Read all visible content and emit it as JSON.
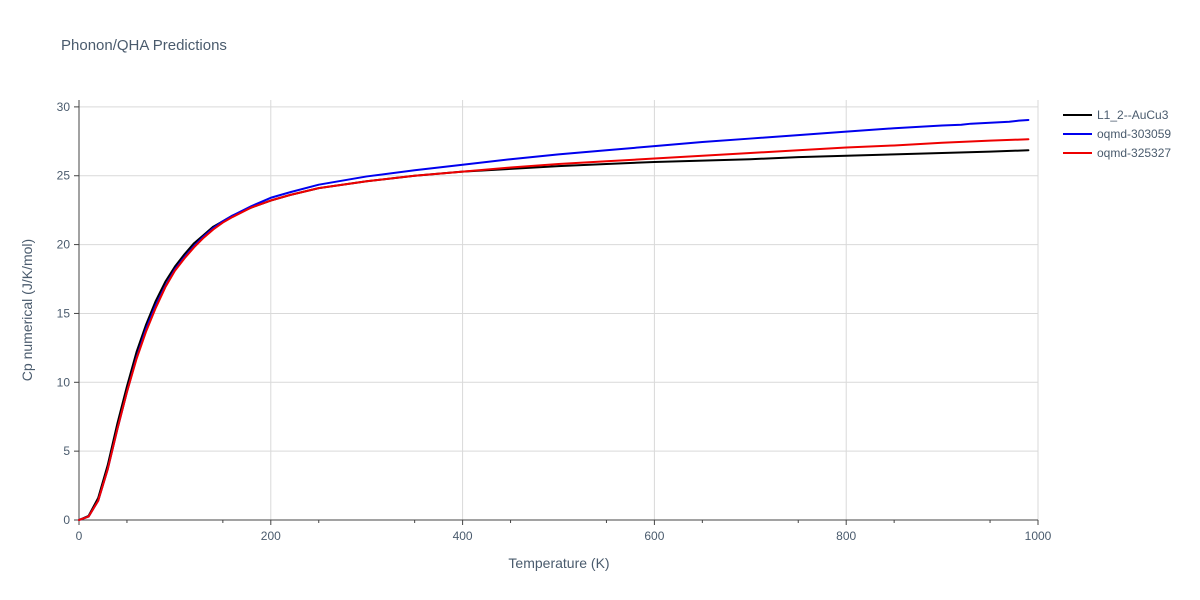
{
  "chart_data": {
    "type": "line",
    "title": "Phonon/QHA Predictions",
    "xlabel": "Temperature (K)",
    "ylabel": "Cp numerical (J/K/mol)",
    "xlim": [
      0,
      1000
    ],
    "ylim": [
      0,
      30.5
    ],
    "xticks": [
      0,
      200,
      400,
      600,
      800,
      1000
    ],
    "yticks": [
      0,
      5,
      10,
      15,
      20,
      25,
      30
    ],
    "xtick_labels": [
      "0",
      "200",
      "400",
      "600",
      "800",
      "1000"
    ],
    "ytick_labels": [
      "0",
      "5",
      "10",
      "15",
      "20",
      "25",
      "30"
    ],
    "grid": true,
    "legend_position": "top-right outside",
    "series": [
      {
        "name": "L1_2--AuCu3",
        "color": "#000000",
        "x": [
          0,
          10,
          20,
          30,
          40,
          50,
          60,
          70,
          80,
          90,
          100,
          110,
          120,
          130,
          140,
          150,
          160,
          180,
          200,
          220,
          250,
          300,
          350,
          400,
          450,
          500,
          550,
          600,
          650,
          700,
          750,
          800,
          850,
          900,
          950,
          990
        ],
        "y": [
          0,
          0.3,
          1.6,
          4.0,
          7.0,
          9.7,
          12.2,
          14.2,
          15.9,
          17.3,
          18.4,
          19.3,
          20.1,
          20.7,
          21.3,
          21.7,
          22.1,
          22.7,
          23.2,
          23.6,
          24.1,
          24.6,
          25.0,
          25.3,
          25.5,
          25.7,
          25.85,
          26.0,
          26.1,
          26.2,
          26.35,
          26.45,
          26.55,
          26.65,
          26.75,
          26.85
        ]
      },
      {
        "name": "oqmd-303059",
        "color": "#0000ee",
        "x": [
          0,
          10,
          20,
          30,
          40,
          50,
          60,
          70,
          80,
          90,
          100,
          110,
          120,
          130,
          140,
          150,
          160,
          180,
          200,
          220,
          250,
          300,
          350,
          400,
          450,
          500,
          550,
          600,
          650,
          700,
          750,
          800,
          850,
          900,
          920,
          930,
          950,
          970,
          980,
          990
        ],
        "y": [
          0,
          0.25,
          1.4,
          3.7,
          6.6,
          9.3,
          11.8,
          13.9,
          15.6,
          17.0,
          18.2,
          19.1,
          19.9,
          20.6,
          21.2,
          21.7,
          22.1,
          22.8,
          23.4,
          23.8,
          24.35,
          24.95,
          25.4,
          25.8,
          26.2,
          26.55,
          26.85,
          27.15,
          27.45,
          27.7,
          27.95,
          28.2,
          28.45,
          28.65,
          28.7,
          28.78,
          28.85,
          28.92,
          29.0,
          29.05
        ]
      },
      {
        "name": "oqmd-325327",
        "color": "#ee0000",
        "x": [
          0,
          10,
          20,
          30,
          40,
          50,
          60,
          70,
          80,
          90,
          100,
          110,
          120,
          130,
          140,
          150,
          160,
          180,
          200,
          220,
          250,
          300,
          350,
          400,
          450,
          500,
          550,
          600,
          650,
          700,
          750,
          800,
          850,
          900,
          950,
          990
        ],
        "y": [
          0,
          0.25,
          1.4,
          3.7,
          6.6,
          9.3,
          11.7,
          13.7,
          15.4,
          16.9,
          18.1,
          19.0,
          19.8,
          20.5,
          21.1,
          21.6,
          22.0,
          22.7,
          23.2,
          23.6,
          24.1,
          24.6,
          25.0,
          25.3,
          25.6,
          25.85,
          26.05,
          26.25,
          26.45,
          26.65,
          26.85,
          27.05,
          27.2,
          27.4,
          27.55,
          27.65
        ]
      }
    ]
  }
}
